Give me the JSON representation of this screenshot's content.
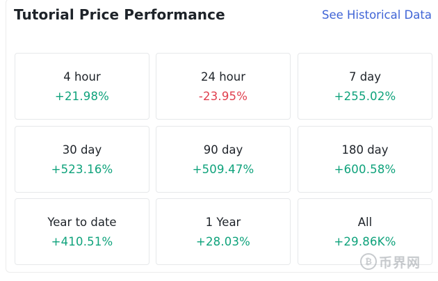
{
  "header": {
    "title": "Tutorial Price Performance",
    "historical_link": "See Historical Data"
  },
  "colors": {
    "positive": "#0ea27b",
    "negative": "#e03e4d"
  },
  "cards": [
    {
      "period": "4 hour",
      "change": "+21.98%",
      "trend": "positive"
    },
    {
      "period": "24 hour",
      "change": "-23.95%",
      "trend": "negative"
    },
    {
      "period": "7 day",
      "change": "+255.02%",
      "trend": "positive"
    },
    {
      "period": "30 day",
      "change": "+523.16%",
      "trend": "positive"
    },
    {
      "period": "90 day",
      "change": "+509.47%",
      "trend": "positive"
    },
    {
      "period": "180 day",
      "change": "+600.58%",
      "trend": "positive"
    },
    {
      "period": "Year to date",
      "change": "+410.51%",
      "trend": "positive"
    },
    {
      "period": "1 Year",
      "change": "+28.03%",
      "trend": "positive"
    },
    {
      "period": "All",
      "change": "+29.86K%",
      "trend": "positive"
    }
  ],
  "watermark": {
    "icon": "bitcoin-coin-icon",
    "text": "币界网"
  }
}
